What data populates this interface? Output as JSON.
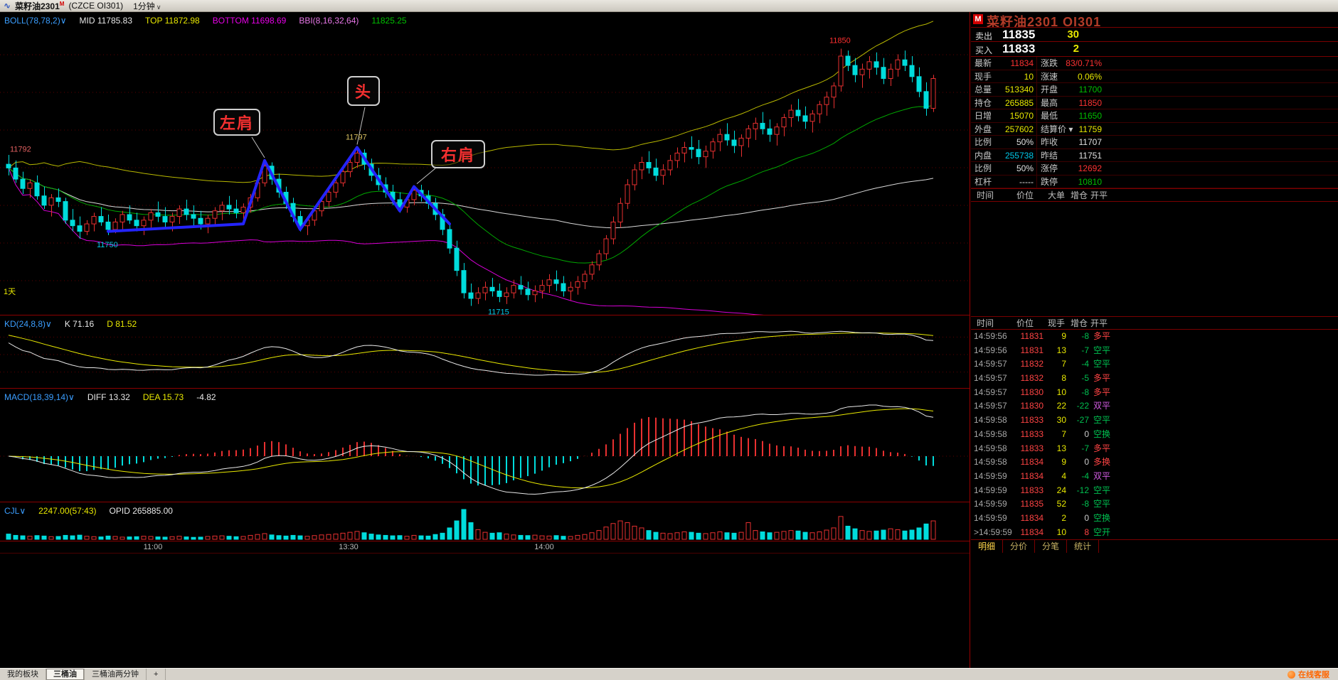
{
  "titlebar": {
    "icon": "∿",
    "contract": "菜籽油2301",
    "sup": "M",
    "exchange": "(CZCE OI301)",
    "period": "1分钟",
    "caret": "∨"
  },
  "main_chart": {
    "indicators": [
      {
        "text": "BOLL(78,78,2)∨",
        "color": "#3b9eff"
      },
      {
        "text": "MID 11785.83",
        "color": "#e8e8e8"
      },
      {
        "text": "TOP 11872.98",
        "color": "#e8e800"
      },
      {
        "text": "BOTTOM 11698.69",
        "color": "#e800e8"
      },
      {
        "text": "BBI(8,16,32,64)",
        "color": "#e878e8"
      },
      {
        "text": "11825.25",
        "color": "#00c000"
      }
    ],
    "period_label": "1天",
    "annotations": [
      {
        "text": "左肩"
      },
      {
        "text": "头"
      },
      {
        "text": "右肩"
      }
    ],
    "swing_labels": [
      {
        "text": "11792",
        "color": "#e06060"
      },
      {
        "text": "11750",
        "color": "#00c8e8"
      },
      {
        "text": "11797",
        "color": "#d8c060"
      },
      {
        "text": "11715",
        "color": "#00c8e8"
      },
      {
        "text": "11850",
        "color": "#ff3030"
      }
    ]
  },
  "kd_panel": {
    "label": "KD(24,8,8)∨",
    "k_text": "K 71.16",
    "d_text": "D 81.52"
  },
  "macd_panel": {
    "label": "MACD(18,39,14)∨",
    "diff_text": "DIFF 13.32",
    "dea_text": "DEA 15.73",
    "macd_text": "-4.82"
  },
  "cjl_panel": {
    "label": "CJL∨",
    "value_text": "2247.00(57:43)",
    "opid_text": "OPID 265885.00"
  },
  "time_axis": [
    "11:00",
    "13:30",
    "14:00"
  ],
  "sidebar": {
    "badge": "M",
    "title": "菜籽油2301 OI301",
    "sell": {
      "label": "卖出",
      "price": "11835",
      "vol": "30"
    },
    "buy": {
      "label": "买入",
      "price": "11833",
      "vol": "2"
    },
    "stats": [
      {
        "l1": "最新",
        "v1": "11834",
        "c1": "#ff3232",
        "l2": "涨跌",
        "v2": "83/0.71%",
        "c2": "#ff3232"
      },
      {
        "l1": "现手",
        "v1": "10",
        "c1": "#e8e800",
        "l2": "涨速",
        "v2": "0.06%",
        "c2": "#e8e800"
      },
      {
        "l1": "总量",
        "v1": "513340",
        "c1": "#e8e800",
        "l2": "开盘",
        "v2": "11700",
        "c2": "#00c000"
      },
      {
        "l1": "持仓",
        "v1": "265885",
        "c1": "#e8e800",
        "l2": "最高",
        "v2": "11850",
        "c2": "#ff3232"
      },
      {
        "l1": "日增",
        "v1": "15070",
        "c1": "#e8e800",
        "l2": "最低",
        "v2": "11650",
        "c2": "#00c000"
      },
      {
        "l1": "外盘",
        "v1": "257602",
        "c1": "#e8e800",
        "l2": "结算价",
        "v2": "11759",
        "c2": "#e8e800",
        "caret2": true
      },
      {
        "l1": "比例",
        "v1": "50%",
        "c1": "#e0e0e0",
        "l2": "昨收",
        "v2": "11707",
        "c2": "#e0e0e0"
      },
      {
        "l1": "内盘",
        "v1": "255738",
        "c1": "#00c8e8",
        "l2": "昨结",
        "v2": "11751",
        "c2": "#e0e0e0"
      },
      {
        "l1": "比例",
        "v1": "50%",
        "c1": "#e0e0e0",
        "l2": "涨停",
        "v2": "12692",
        "c2": "#ff3232"
      },
      {
        "l1": "杠杆",
        "v1": "-----",
        "c1": "#e0e0e0",
        "l2": "跌停",
        "v2": "10810",
        "c2": "#00c000"
      }
    ],
    "bigorder_headers": [
      "时间",
      "价位",
      "大单",
      "增仓",
      "开平"
    ],
    "tick_headers": [
      "时间",
      "价位",
      "现手",
      "增仓",
      "开平"
    ],
    "ticks": [
      {
        "t": "14:59:56",
        "p": "11831",
        "v": "9",
        "z": "-8",
        "f": "多平"
      },
      {
        "t": "14:59:56",
        "p": "11831",
        "v": "13",
        "z": "-7",
        "f": "空平"
      },
      {
        "t": "14:59:57",
        "p": "11832",
        "v": "7",
        "z": "-4",
        "f": "空平"
      },
      {
        "t": "14:59:57",
        "p": "11832",
        "v": "8",
        "z": "-5",
        "f": "多平"
      },
      {
        "t": "14:59:57",
        "p": "11830",
        "v": "10",
        "z": "-8",
        "f": "多平"
      },
      {
        "t": "14:59:57",
        "p": "11830",
        "v": "22",
        "z": "-22",
        "f": "双平"
      },
      {
        "t": "14:59:58",
        "p": "11833",
        "v": "30",
        "z": "-27",
        "f": "空平"
      },
      {
        "t": "14:59:58",
        "p": "11833",
        "v": "7",
        "z": "0",
        "f": "空换"
      },
      {
        "t": "14:59:58",
        "p": "11833",
        "v": "13",
        "z": "-7",
        "f": "多平"
      },
      {
        "t": "14:59:58",
        "p": "11834",
        "v": "9",
        "z": "0",
        "f": "多换"
      },
      {
        "t": "14:59:59",
        "p": "11834",
        "v": "4",
        "z": "-4",
        "f": "双平"
      },
      {
        "t": "14:59:59",
        "p": "11833",
        "v": "24",
        "z": "-12",
        "f": "空平"
      },
      {
        "t": "14:59:59",
        "p": "11835",
        "v": "52",
        "z": "-8",
        "f": "空平"
      },
      {
        "t": "14:59:59",
        "p": "11834",
        "v": "2",
        "z": "0",
        "f": "空换"
      },
      {
        "t": ">14:59:59",
        "p": "11834",
        "v": "10",
        "z": "8",
        "f": "空开"
      }
    ],
    "tabs": [
      {
        "label": "明细",
        "active": true
      },
      {
        "label": "分价",
        "active": false
      },
      {
        "label": "分笔",
        "active": false
      },
      {
        "label": "统计",
        "active": false
      }
    ]
  },
  "taskbar": {
    "menu_label": "我的板块",
    "tabs": [
      {
        "label": "三桶油",
        "active": true
      },
      {
        "label": "三桶油两分钟",
        "active": false
      },
      {
        "label": "+",
        "active": false
      }
    ],
    "service_label": "在线客服"
  },
  "colors": {
    "up": "#e83030",
    "down": "#00dcdc",
    "boll_top": "#b8b800",
    "boll_mid": "#d8d8d8",
    "boll_bottom": "#d800d8",
    "bbi": "#00a800",
    "pattern_line": "#2424ff",
    "grid": "#600000"
  },
  "chart_data": {
    "type": "candlestick",
    "title": "菜籽油2301 OI301 1分钟",
    "ylim": [
      11708,
      11862
    ],
    "x_time_ticks": [
      "11:00",
      "13:30",
      "14:00"
    ],
    "swing_points": {
      "left_area_high": 11792,
      "first_low": 11750,
      "head": 11797,
      "breakdown_low": 11715,
      "session_high": 11850,
      "last": 11834
    },
    "hs_pattern": [
      [
        14,
        11752
      ],
      [
        33,
        11756
      ],
      [
        36,
        11790
      ],
      [
        41,
        11753
      ],
      [
        49,
        11797
      ],
      [
        55,
        11763
      ],
      [
        57,
        11776
      ],
      [
        62,
        11756
      ]
    ],
    "candles": [
      [
        11788,
        11793,
        11782,
        11786
      ],
      [
        11786,
        11790,
        11778,
        11780
      ],
      [
        11780,
        11784,
        11772,
        11775
      ],
      [
        11775,
        11780,
        11770,
        11778
      ],
      [
        11778,
        11782,
        11769,
        11771
      ],
      [
        11771,
        11776,
        11764,
        11766
      ],
      [
        11766,
        11772,
        11760,
        11770
      ],
      [
        11770,
        11775,
        11765,
        11768
      ],
      [
        11768,
        11770,
        11756,
        11758
      ],
      [
        11758,
        11764,
        11752,
        11755
      ],
      [
        11755,
        11760,
        11748,
        11752
      ],
      [
        11752,
        11758,
        11750,
        11756
      ],
      [
        11756,
        11762,
        11752,
        11760
      ],
      [
        11760,
        11765,
        11755,
        11757
      ],
      [
        11757,
        11761,
        11750,
        11753
      ],
      [
        11753,
        11759,
        11751,
        11757
      ],
      [
        11757,
        11763,
        11753,
        11761
      ],
      [
        11761,
        11766,
        11756,
        11758
      ],
      [
        11758,
        11762,
        11752,
        11755
      ],
      [
        11755,
        11760,
        11750,
        11758
      ],
      [
        11758,
        11764,
        11754,
        11762
      ],
      [
        11762,
        11768,
        11757,
        11760
      ],
      [
        11760,
        11765,
        11754,
        11757
      ],
      [
        11757,
        11762,
        11752,
        11760
      ],
      [
        11760,
        11766,
        11756,
        11764
      ],
      [
        11764,
        11769,
        11758,
        11761
      ],
      [
        11761,
        11766,
        11755,
        11759
      ],
      [
        11759,
        11763,
        11753,
        11756
      ],
      [
        11756,
        11761,
        11751,
        11759
      ],
      [
        11759,
        11765,
        11755,
        11763
      ],
      [
        11763,
        11768,
        11758,
        11766
      ],
      [
        11766,
        11771,
        11761,
        11764
      ],
      [
        11764,
        11769,
        11759,
        11762
      ],
      [
        11762,
        11767,
        11757,
        11765
      ],
      [
        11765,
        11772,
        11762,
        11770
      ],
      [
        11770,
        11780,
        11768,
        11778
      ],
      [
        11778,
        11790,
        11776,
        11787
      ],
      [
        11787,
        11789,
        11777,
        11780
      ],
      [
        11780,
        11783,
        11770,
        11773
      ],
      [
        11773,
        11776,
        11764,
        11767
      ],
      [
        11767,
        11770,
        11757,
        11760
      ],
      [
        11760,
        11763,
        11752,
        11755
      ],
      [
        11755,
        11760,
        11750,
        11758
      ],
      [
        11758,
        11765,
        11755,
        11763
      ],
      [
        11763,
        11770,
        11760,
        11768
      ],
      [
        11768,
        11775,
        11765,
        11773
      ],
      [
        11773,
        11780,
        11770,
        11778
      ],
      [
        11778,
        11786,
        11776,
        11784
      ],
      [
        11784,
        11791,
        11781,
        11789
      ],
      [
        11789,
        11797,
        11786,
        11794
      ],
      [
        11794,
        11796,
        11785,
        11788
      ],
      [
        11788,
        11791,
        11779,
        11782
      ],
      [
        11782,
        11786,
        11774,
        11777
      ],
      [
        11777,
        11781,
        11770,
        11773
      ],
      [
        11773,
        11777,
        11766,
        11769
      ],
      [
        11769,
        11773,
        11762,
        11765
      ],
      [
        11765,
        11771,
        11762,
        11769
      ],
      [
        11769,
        11776,
        11766,
        11774
      ],
      [
        11774,
        11777,
        11768,
        11771
      ],
      [
        11771,
        11774,
        11764,
        11767
      ],
      [
        11767,
        11770,
        11758,
        11761
      ],
      [
        11761,
        11764,
        11750,
        11753
      ],
      [
        11753,
        11756,
        11740,
        11743
      ],
      [
        11743,
        11747,
        11728,
        11731
      ],
      [
        11731,
        11735,
        11716,
        11719
      ],
      [
        11719,
        11724,
        11712,
        11716
      ],
      [
        11716,
        11722,
        11713,
        11719
      ],
      [
        11719,
        11725,
        11715,
        11722
      ],
      [
        11722,
        11727,
        11717,
        11720
      ],
      [
        11720,
        11724,
        11714,
        11717
      ],
      [
        11717,
        11722,
        11713,
        11719
      ],
      [
        11719,
        11726,
        11716,
        11723
      ],
      [
        11723,
        11728,
        11718,
        11721
      ],
      [
        11721,
        11725,
        11715,
        11718
      ],
      [
        11718,
        11723,
        11714,
        11720
      ],
      [
        11720,
        11726,
        11716,
        11723
      ],
      [
        11723,
        11729,
        11719,
        11726
      ],
      [
        11726,
        11731,
        11720,
        11724
      ],
      [
        11724,
        11728,
        11717,
        11720
      ],
      [
        11720,
        11725,
        11715,
        11722
      ],
      [
        11722,
        11728,
        11718,
        11725
      ],
      [
        11725,
        11731,
        11721,
        11729
      ],
      [
        11729,
        11736,
        11726,
        11734
      ],
      [
        11734,
        11742,
        11731,
        11740
      ],
      [
        11740,
        11750,
        11737,
        11748
      ],
      [
        11748,
        11760,
        11745,
        11757
      ],
      [
        11757,
        11770,
        11754,
        11767
      ],
      [
        11767,
        11780,
        11764,
        11777
      ],
      [
        11777,
        11788,
        11774,
        11785
      ],
      [
        11785,
        11792,
        11780,
        11789
      ],
      [
        11789,
        11795,
        11783,
        11786
      ],
      [
        11786,
        11791,
        11779,
        11782
      ],
      [
        11782,
        11788,
        11777,
        11785
      ],
      [
        11785,
        11793,
        11782,
        11790
      ],
      [
        11790,
        11797,
        11786,
        11794
      ],
      [
        11794,
        11800,
        11789,
        11797
      ],
      [
        11797,
        11803,
        11791,
        11796
      ],
      [
        11796,
        11801,
        11788,
        11792
      ],
      [
        11792,
        11798,
        11786,
        11795
      ],
      [
        11795,
        11802,
        11791,
        11800
      ],
      [
        11800,
        11807,
        11795,
        11804
      ],
      [
        11804,
        11810,
        11798,
        11801
      ],
      [
        11801,
        11806,
        11794,
        11798
      ],
      [
        11798,
        11804,
        11792,
        11802
      ],
      [
        11802,
        11809,
        11797,
        11807
      ],
      [
        11807,
        11813,
        11801,
        11810
      ],
      [
        11810,
        11816,
        11804,
        11807
      ],
      [
        11807,
        11812,
        11800,
        11804
      ],
      [
        11804,
        11810,
        11798,
        11808
      ],
      [
        11808,
        11815,
        11803,
        11813
      ],
      [
        11813,
        11820,
        11808,
        11817
      ],
      [
        11817,
        11823,
        11811,
        11814
      ],
      [
        11814,
        11819,
        11807,
        11811
      ],
      [
        11811,
        11817,
        11805,
        11815
      ],
      [
        11815,
        11822,
        11810,
        11820
      ],
      [
        11820,
        11827,
        11814,
        11824
      ],
      [
        11824,
        11832,
        11818,
        11830
      ],
      [
        11830,
        11850,
        11827,
        11846
      ],
      [
        11846,
        11849,
        11838,
        11841
      ],
      [
        11841,
        11845,
        11832,
        11836
      ],
      [
        11836,
        11842,
        11829,
        11839
      ],
      [
        11839,
        11846,
        11834,
        11843
      ],
      [
        11843,
        11848,
        11836,
        11840
      ],
      [
        11840,
        11845,
        11831,
        11834
      ],
      [
        11834,
        11842,
        11830,
        11839
      ],
      [
        11839,
        11847,
        11835,
        11844
      ],
      [
        11844,
        11849,
        11838,
        11841
      ],
      [
        11841,
        11846,
        11832,
        11835
      ],
      [
        11835,
        11840,
        11824,
        11827
      ],
      [
        11827,
        11832,
        11814,
        11818
      ],
      [
        11818,
        11836,
        11816,
        11834
      ]
    ],
    "volumes": [
      120,
      90,
      80,
      70,
      85,
      75,
      60,
      65,
      90,
      80,
      95,
      70,
      60,
      55,
      75,
      65,
      50,
      55,
      60,
      70,
      65,
      55,
      50,
      60,
      70,
      55,
      45,
      50,
      65,
      75,
      80,
      70,
      60,
      65,
      90,
      110,
      130,
      100,
      85,
      75,
      90,
      80,
      70,
      85,
      100,
      110,
      120,
      140,
      160,
      180,
      150,
      120,
      100,
      90,
      80,
      85,
      70,
      90,
      80,
      75,
      110,
      140,
      260,
      420,
      680,
      380,
      220,
      160,
      140,
      150,
      120,
      100,
      90,
      85,
      95,
      80,
      75,
      85,
      70,
      65,
      90,
      110,
      150,
      200,
      280,
      360,
      420,
      380,
      300,
      260,
      200,
      160,
      140,
      130,
      150,
      170,
      160,
      140,
      130,
      150,
      170,
      150,
      140,
      160,
      380,
      200,
      170,
      150,
      160,
      180,
      200,
      190,
      160,
      150,
      170,
      210,
      260,
      520,
      300,
      240,
      200,
      180,
      190,
      210,
      240,
      220,
      190,
      210,
      260,
      350,
      420
    ]
  }
}
